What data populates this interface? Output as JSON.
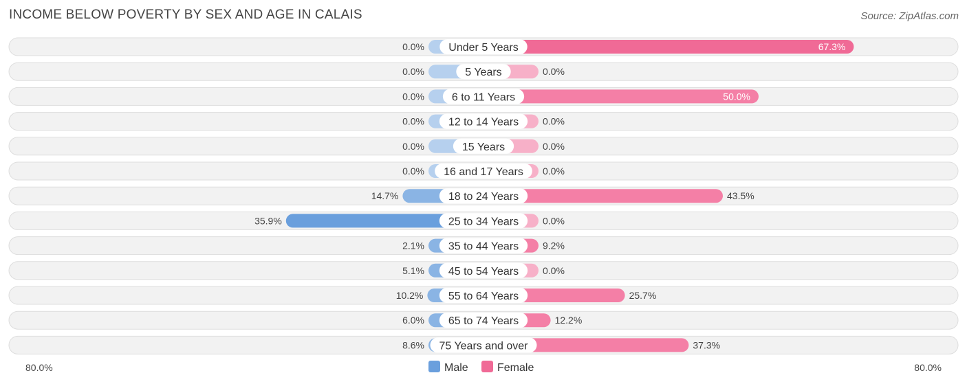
{
  "header": {
    "title": "INCOME BELOW POVERTY BY SEX AND AGE IN CALAIS",
    "source": "Source: ZipAtlas.com"
  },
  "colors": {
    "male": "#8ab4e4",
    "male_strong": "#6a9fdd",
    "male_light": "#b6d0ee",
    "female": "#f47fa6",
    "female_strong": "#f06a96",
    "female_light": "#f7b0c8",
    "row_bg": "#f2f2f2",
    "row_border": "#dddddd"
  },
  "chart_data": {
    "type": "bar",
    "orientation": "horizontal-diverging",
    "title": "INCOME BELOW POVERTY BY SEX AND AGE IN CALAIS",
    "categories": [
      "Under 5 Years",
      "5 Years",
      "6 to 11 Years",
      "12 to 14 Years",
      "15 Years",
      "16 and 17 Years",
      "18 to 24 Years",
      "25 to 34 Years",
      "35 to 44 Years",
      "45 to 54 Years",
      "55 to 64 Years",
      "65 to 74 Years",
      "75 Years and over"
    ],
    "series": [
      {
        "name": "Male",
        "values": [
          0.0,
          0.0,
          0.0,
          0.0,
          0.0,
          0.0,
          14.7,
          35.9,
          2.1,
          5.1,
          10.2,
          6.0,
          8.6
        ],
        "labels": [
          "0.0%",
          "0.0%",
          "0.0%",
          "0.0%",
          "0.0%",
          "0.0%",
          "14.7%",
          "35.9%",
          "2.1%",
          "5.1%",
          "10.2%",
          "6.0%",
          "8.6%"
        ]
      },
      {
        "name": "Female",
        "values": [
          67.3,
          0.0,
          50.0,
          0.0,
          0.0,
          0.0,
          43.5,
          0.0,
          9.2,
          0.0,
          25.7,
          12.2,
          37.3
        ],
        "labels": [
          "67.3%",
          "0.0%",
          "50.0%",
          "0.0%",
          "0.0%",
          "0.0%",
          "43.5%",
          "0.0%",
          "9.2%",
          "0.0%",
          "25.7%",
          "12.2%",
          "37.3%"
        ]
      }
    ],
    "xlim": [
      -80,
      80
    ],
    "axis_left_label": "80.0%",
    "axis_right_label": "80.0%",
    "legend": [
      "Male",
      "Female"
    ],
    "legend_position": "bottom-center"
  }
}
